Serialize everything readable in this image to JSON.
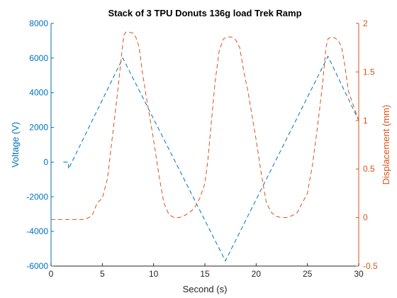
{
  "colors": {
    "left_series": "#0072BD",
    "right_series": "#D95319",
    "axis_left": "#0072BD",
    "axis_right": "#D95319",
    "axis_bottom": "#262626",
    "title": "#000000"
  },
  "chart_data": {
    "type": "line",
    "title": "Stack of 3 TPU Donuts 136g load Trek Ramp",
    "xlabel": "Second (s)",
    "ylabel_left": "Voltage (V)",
    "ylabel_right": "Displacement (mm)",
    "xlim": [
      0,
      30
    ],
    "ylim_left": [
      -6000,
      8000
    ],
    "ylim_right": [
      -0.5,
      2
    ],
    "x_ticks": [
      0,
      5,
      10,
      15,
      20,
      25,
      30
    ],
    "y_left_ticks": [
      -6000,
      -4000,
      -2000,
      0,
      2000,
      4000,
      6000,
      8000
    ],
    "y_right_ticks": [
      -0.5,
      0,
      0.5,
      1,
      1.5,
      2
    ],
    "grid": false,
    "legend": "none",
    "series": [
      {
        "axis": "left",
        "line_style": "dashed",
        "color": "#0072BD",
        "x": [
          1.2,
          1.7,
          1.7,
          7.0,
          17.0,
          27.0,
          30.0
        ],
        "y": [
          0,
          0,
          -400,
          6000,
          -5700,
          6100,
          2400
        ]
      },
      {
        "axis": "right",
        "line_style": "dashed",
        "color": "#D95319",
        "x": [
          0,
          1,
          2,
          3,
          3.5,
          4,
          4.5,
          5,
          5.5,
          6,
          6.5,
          6.9,
          7.1,
          7.3,
          7.6,
          8,
          8.3,
          8.6,
          8.9,
          9.2,
          9.6,
          10,
          10.5,
          11,
          11.5,
          12,
          12.5,
          13,
          13.5,
          14,
          14.5,
          15,
          15.3,
          15.6,
          16,
          16.4,
          16.8,
          17.2,
          17.6,
          18,
          18.4,
          18.8,
          19.2,
          19.6,
          20,
          20.5,
          21,
          21.5,
          22,
          22.5,
          23,
          23.5,
          24,
          24.5,
          25,
          25.5,
          26,
          26.5,
          26.8,
          27,
          27.3,
          27.7,
          28,
          28.3,
          28.6,
          29,
          29.5,
          30
        ],
        "y": [
          -0.02,
          -0.02,
          -0.02,
          -0.02,
          -0.01,
          0.02,
          0.15,
          0.2,
          0.4,
          0.85,
          1.3,
          1.7,
          1.88,
          1.91,
          1.91,
          1.9,
          1.85,
          1.75,
          1.5,
          1.3,
          1.05,
          0.8,
          0.45,
          0.15,
          0.03,
          0.0,
          0.0,
          0.02,
          0.05,
          0.1,
          0.2,
          0.35,
          0.6,
          0.95,
          1.4,
          1.72,
          1.84,
          1.86,
          1.86,
          1.83,
          1.75,
          1.5,
          1.3,
          1.05,
          0.8,
          0.45,
          0.15,
          0.05,
          0.01,
          0.0,
          0.0,
          0.02,
          0.05,
          0.15,
          0.25,
          0.55,
          0.95,
          1.4,
          1.75,
          1.84,
          1.86,
          1.85,
          1.82,
          1.77,
          1.6,
          1.3,
          1.15,
          1.0
        ]
      }
    ]
  }
}
